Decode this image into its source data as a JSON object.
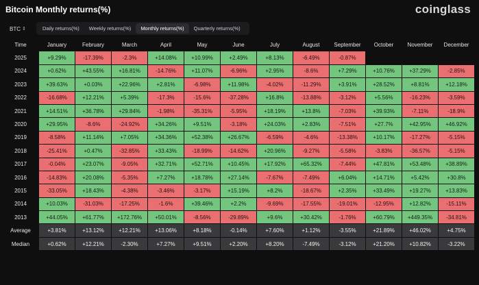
{
  "header": {
    "title": "Bitcoin Monthly returns(%)",
    "brand": "coinglass"
  },
  "asset_select": {
    "value": "BTC",
    "icon": "updown-chevron-icon"
  },
  "tabs": [
    "Daily returns(%)",
    "Weekly returns(%)",
    "Monthly returns(%)",
    "Quarterly returns(%)"
  ],
  "active_tab": 2,
  "table": {
    "time_label": "Time",
    "months": [
      "January",
      "February",
      "March",
      "April",
      "May",
      "June",
      "July",
      "August",
      "September",
      "October",
      "November",
      "December"
    ],
    "rows": [
      {
        "year": "2025",
        "values": [
          "+9.29%",
          "-17.39%",
          "-2.3%",
          "+14.08%",
          "+10.99%",
          "+2.49%",
          "+8.13%",
          "-6.49%",
          "-0.87%",
          "",
          "",
          ""
        ]
      },
      {
        "year": "2024",
        "values": [
          "+0.62%",
          "+43.55%",
          "+16.81%",
          "-14.76%",
          "+11.07%",
          "-6.96%",
          "+2.95%",
          "-8.6%",
          "+7.29%",
          "+10.76%",
          "+37.29%",
          "-2.85%"
        ]
      },
      {
        "year": "2023",
        "values": [
          "+39.63%",
          "+0.03%",
          "+22.96%",
          "+2.81%",
          "-6.98%",
          "+11.98%",
          "-4.02%",
          "-11.29%",
          "+3.91%",
          "+28.52%",
          "+8.81%",
          "+12.18%"
        ]
      },
      {
        "year": "2022",
        "values": [
          "-16.68%",
          "+12.21%",
          "+5.39%",
          "-17.3%",
          "-15.6%",
          "-37.28%",
          "+16.8%",
          "-13.88%",
          "-3.12%",
          "+5.56%",
          "-16.23%",
          "-3.59%"
        ]
      },
      {
        "year": "2021",
        "values": [
          "+14.51%",
          "+36.78%",
          "+29.84%",
          "-1.98%",
          "-35.31%",
          "-5.95%",
          "+18.19%",
          "+13.8%",
          "-7.03%",
          "+39.93%",
          "-7.11%",
          "-18.9%"
        ]
      },
      {
        "year": "2020",
        "values": [
          "+29.95%",
          "-8.6%",
          "-24.92%",
          "+34.26%",
          "+9.51%",
          "-3.18%",
          "+24.03%",
          "+2.83%",
          "-7.51%",
          "+27.7%",
          "+42.95%",
          "+46.92%"
        ]
      },
      {
        "year": "2019",
        "values": [
          "-8.58%",
          "+11.14%",
          "+7.05%",
          "+34.36%",
          "+52.38%",
          "+26.67%",
          "-6.59%",
          "-4.6%",
          "-13.38%",
          "+10.17%",
          "-17.27%",
          "-5.15%"
        ]
      },
      {
        "year": "2018",
        "values": [
          "-25.41%",
          "+0.47%",
          "-32.85%",
          "+33.43%",
          "-18.99%",
          "-14.62%",
          "+20.96%",
          "-9.27%",
          "-5.58%",
          "-3.83%",
          "-36.57%",
          "-5.15%"
        ]
      },
      {
        "year": "2017",
        "values": [
          "-0.04%",
          "+23.07%",
          "-9.05%",
          "+32.71%",
          "+52.71%",
          "+10.45%",
          "+17.92%",
          "+65.32%",
          "-7.44%",
          "+47.81%",
          "+53.48%",
          "+38.89%"
        ]
      },
      {
        "year": "2016",
        "values": [
          "-14.83%",
          "+20.08%",
          "-5.35%",
          "+7.27%",
          "+18.78%",
          "+27.14%",
          "-7.67%",
          "-7.49%",
          "+6.04%",
          "+14.71%",
          "+5.42%",
          "+30.8%"
        ]
      },
      {
        "year": "2015",
        "values": [
          "-33.05%",
          "+18.43%",
          "-4.38%",
          "-3.46%",
          "-3.17%",
          "+15.19%",
          "+8.2%",
          "-18.67%",
          "+2.35%",
          "+33.49%",
          "+19.27%",
          "+13.83%"
        ]
      },
      {
        "year": "2014",
        "values": [
          "+10.03%",
          "-31.03%",
          "-17.25%",
          "-1.6%",
          "+39.46%",
          "+2.2%",
          "-9.69%",
          "-17.55%",
          "-19.01%",
          "-12.95%",
          "+12.82%",
          "-15.11%"
        ]
      },
      {
        "year": "2013",
        "values": [
          "+44.05%",
          "+61.77%",
          "+172.76%",
          "+50.01%",
          "-8.56%",
          "-29.89%",
          "+9.6%",
          "+30.42%",
          "-1.76%",
          "+60.79%",
          "+449.35%",
          "-34.81%"
        ]
      }
    ],
    "stats": [
      {
        "label": "Average",
        "values": [
          "+3.81%",
          "+13.12%",
          "+12.21%",
          "+13.06%",
          "+8.18%",
          "-0.14%",
          "+7.60%",
          "+1.12%",
          "-3.55%",
          "+21.89%",
          "+46.02%",
          "+4.75%"
        ]
      },
      {
        "label": "Median",
        "values": [
          "+0.62%",
          "+12.21%",
          "-2.30%",
          "+7.27%",
          "+9.51%",
          "+2.20%",
          "+8.20%",
          "-7.49%",
          "-3.12%",
          "+21.20%",
          "+10.82%",
          "-3.22%"
        ]
      }
    ]
  },
  "colors": {
    "positive": "#74c67e",
    "negative": "#ea6f70",
    "stat_bg": "#3a3a3c",
    "background": "#0f0f10"
  }
}
